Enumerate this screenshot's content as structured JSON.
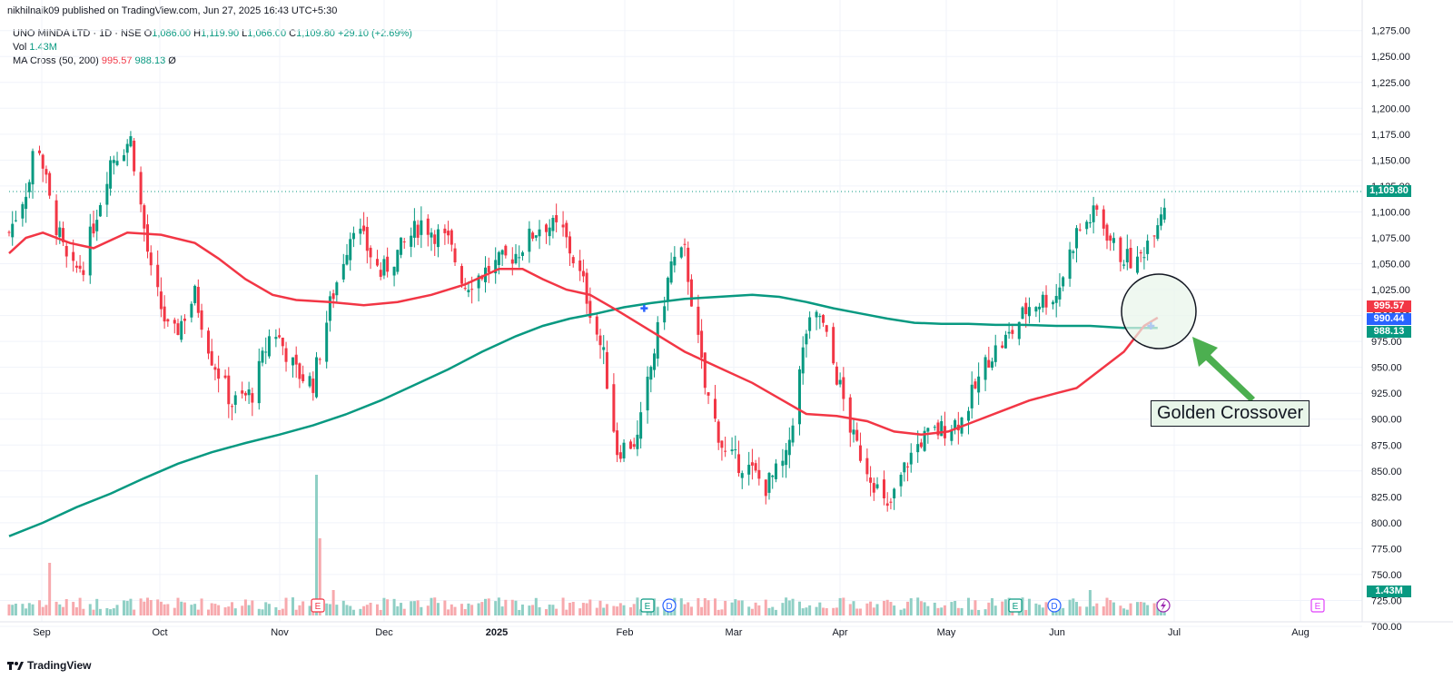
{
  "header": {
    "publisher_text": "nikhilnaik09 published on TradingView.com, Jun 27, 2025 16:43 UTC+5:30"
  },
  "legend": {
    "symbol": "UNO MINDA LTD · 1D · NSE",
    "o_label": "O",
    "o_value": "1,086.00",
    "h_label": "H",
    "h_value": "1,119.90",
    "l_label": "L",
    "l_value": "1,066.00",
    "c_label": "C",
    "c_value": "1,109.80",
    "change": "+29.10 (+2.69%)",
    "vol_label": "Vol",
    "vol_value": "1.43M",
    "ma_label": "MA Cross (50, 200)",
    "ma_fast": "995.57",
    "ma_slow": "988.13",
    "ma_extra": "Ø"
  },
  "price_tags": {
    "last_price": "1,109.80",
    "ma_fast": "995.57",
    "crosshair": "990.44",
    "ma_slow": "988.13",
    "volume": "1.43M"
  },
  "annotation": {
    "label": "Golden Crossover"
  },
  "branding": {
    "logo_text": "TradingView"
  },
  "colors": {
    "up": "#089981",
    "down": "#f23645",
    "ma_fast": "#f23645",
    "ma_slow": "#089981",
    "volume_up": "#8fcfc5",
    "volume_down": "#f7a9ad",
    "annotation_arrow": "#4caf50",
    "crosshair_tag": "#2962ff"
  },
  "chart_data": {
    "type": "candlestick",
    "y_ticks": [
      "1,275.00",
      "1,250.00",
      "1,225.00",
      "1,200.00",
      "1,175.00",
      "1,150.00",
      "1,125.00",
      "1,100.00",
      "1,075.00",
      "1,050.00",
      "1,025.00",
      "1,000.00",
      "975.00",
      "950.00",
      "925.00",
      "900.00",
      "875.00",
      "850.00",
      "825.00",
      "800.00",
      "775.00",
      "750.00",
      "725.00",
      "700.00"
    ],
    "ylim": [
      700,
      1280
    ],
    "x_labels": [
      "Sep",
      "Oct",
      "Nov",
      "Dec",
      "2025",
      "Feb",
      "Mar",
      "Apr",
      "May",
      "Jun",
      "Jul",
      "Aug"
    ],
    "last_close": 1109.8,
    "ma50_points": [
      [
        0,
        1060
      ],
      [
        5,
        1075
      ],
      [
        10,
        1080
      ],
      [
        18,
        1070
      ],
      [
        25,
        1065
      ],
      [
        35,
        1080
      ],
      [
        45,
        1078
      ],
      [
        55,
        1070
      ],
      [
        62,
        1055
      ],
      [
        70,
        1035
      ],
      [
        78,
        1020
      ],
      [
        85,
        1015
      ],
      [
        95,
        1013
      ],
      [
        105,
        1010
      ],
      [
        115,
        1013
      ],
      [
        125,
        1020
      ],
      [
        135,
        1030
      ],
      [
        145,
        1045
      ],
      [
        152,
        1045
      ],
      [
        158,
        1035
      ],
      [
        165,
        1025
      ],
      [
        172,
        1020
      ],
      [
        180,
        1005
      ],
      [
        190,
        985
      ],
      [
        200,
        965
      ],
      [
        210,
        950
      ],
      [
        220,
        935
      ],
      [
        228,
        920
      ],
      [
        236,
        905
      ],
      [
        245,
        903
      ],
      [
        254,
        898
      ],
      [
        262,
        888
      ],
      [
        270,
        885
      ],
      [
        278,
        888
      ],
      [
        286,
        898
      ],
      [
        294,
        908
      ],
      [
        302,
        918
      ],
      [
        310,
        925
      ],
      [
        316,
        930
      ],
      [
        322,
        945
      ],
      [
        330,
        965
      ],
      [
        336,
        990
      ],
      [
        340,
        998
      ]
    ],
    "ma200_points": [
      [
        0,
        787
      ],
      [
        10,
        800
      ],
      [
        20,
        815
      ],
      [
        30,
        828
      ],
      [
        40,
        843
      ],
      [
        50,
        857
      ],
      [
        60,
        868
      ],
      [
        70,
        877
      ],
      [
        80,
        885
      ],
      [
        90,
        894
      ],
      [
        100,
        905
      ],
      [
        110,
        918
      ],
      [
        120,
        933
      ],
      [
        130,
        948
      ],
      [
        140,
        965
      ],
      [
        150,
        980
      ],
      [
        158,
        990
      ],
      [
        166,
        997
      ],
      [
        174,
        1002
      ],
      [
        182,
        1008
      ],
      [
        190,
        1012
      ],
      [
        200,
        1016
      ],
      [
        210,
        1018
      ],
      [
        220,
        1020
      ],
      [
        228,
        1018
      ],
      [
        236,
        1013
      ],
      [
        244,
        1007
      ],
      [
        252,
        1002
      ],
      [
        260,
        997
      ],
      [
        268,
        993
      ],
      [
        276,
        992
      ],
      [
        284,
        992
      ],
      [
        292,
        991
      ],
      [
        300,
        991
      ],
      [
        310,
        990
      ],
      [
        320,
        990
      ],
      [
        330,
        988
      ],
      [
        340,
        988
      ]
    ],
    "crossovers": [
      {
        "bar": 188,
        "price": 1007
      },
      {
        "bar": 338,
        "price": 990
      }
    ]
  }
}
